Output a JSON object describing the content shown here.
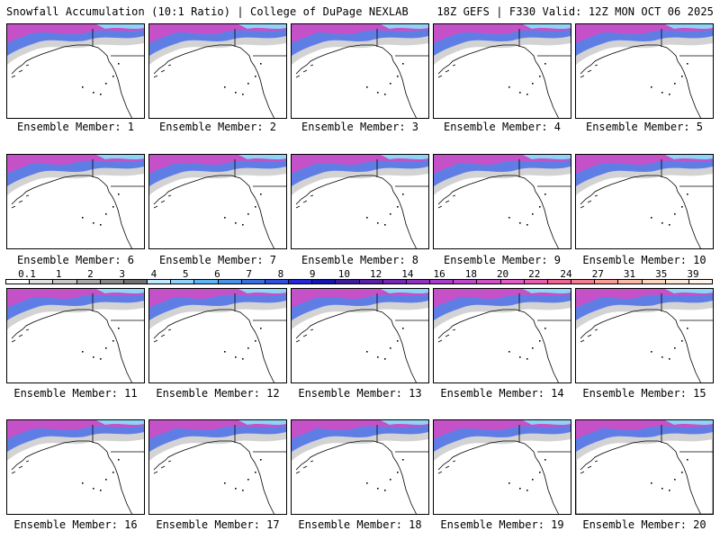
{
  "header": {
    "title": "Snowfall Accumulation (10:1 Ratio) | College of DuPage NEXLAB",
    "run_info": "18Z GEFS | F330 Valid: 12Z MON OCT 06 2025"
  },
  "panels": [
    {
      "label": "Ensemble Member: 1"
    },
    {
      "label": "Ensemble Member: 2"
    },
    {
      "label": "Ensemble Member: 3"
    },
    {
      "label": "Ensemble Member: 4"
    },
    {
      "label": "Ensemble Member: 5"
    },
    {
      "label": "Ensemble Member: 6"
    },
    {
      "label": "Ensemble Member: 7"
    },
    {
      "label": "Ensemble Member: 8"
    },
    {
      "label": "Ensemble Member: 9"
    },
    {
      "label": "Ensemble Member: 10"
    },
    {
      "label": "Ensemble Member: 11"
    },
    {
      "label": "Ensemble Member: 12"
    },
    {
      "label": "Ensemble Member: 13"
    },
    {
      "label": "Ensemble Member: 14"
    },
    {
      "label": "Ensemble Member: 15"
    },
    {
      "label": "Ensemble Member: 16"
    },
    {
      "label": "Ensemble Member: 17"
    },
    {
      "label": "Ensemble Member: 18"
    },
    {
      "label": "Ensemble Member: 19"
    },
    {
      "label": "Ensemble Member: 20"
    }
  ],
  "legend": {
    "labels": [
      "0.1",
      "1",
      "2",
      "3",
      "4",
      "5",
      "6",
      "7",
      "8",
      "9",
      "10",
      "12",
      "14",
      "16",
      "18",
      "20",
      "22",
      "24",
      "27",
      "31",
      "35",
      "39"
    ],
    "colors": [
      "#ffffff",
      "#e0e0e0",
      "#c8c8c8",
      "#a8a8a8",
      "#888888",
      "#707070",
      "#bfe8ff",
      "#8fd4f8",
      "#5fb4f4",
      "#4a90e8",
      "#3a6ee0",
      "#2f4ee0",
      "#2424d8",
      "#1414b4",
      "#3c1c9c",
      "#5a1ea8",
      "#7428b4",
      "#9030c0",
      "#a83cc8",
      "#bc48cc",
      "#d050cc",
      "#e05cc8",
      "#e85cb0",
      "#f06494",
      "#f47c8c",
      "#f89c94",
      "#fbb8a8",
      "#fdd4c0",
      "#fee8d8",
      "#fff4ec"
    ]
  }
}
